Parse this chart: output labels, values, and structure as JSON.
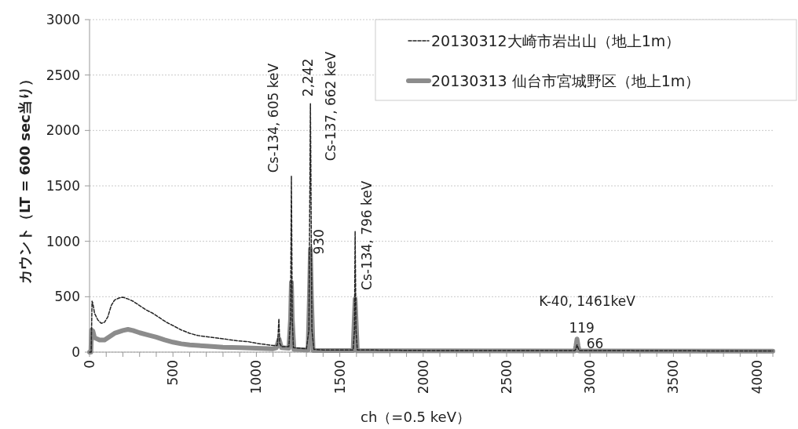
{
  "chart_data": {
    "type": "line",
    "xlabel": "ch（=0.5 keV）",
    "ylabel": "カウント（LT = 600 sec当り）",
    "xlim": [
      0,
      4096
    ],
    "ylim": [
      0,
      3000
    ],
    "xticks": [
      0,
      {
        "value": 100,
        "label": null
      },
      {
        "value": 200,
        "label": null
      },
      {
        "value": 300,
        "label": null
      },
      {
        "value": 400,
        "label": null
      },
      500,
      {
        "value": 600,
        "label": null
      },
      {
        "value": 700,
        "label": null
      },
      {
        "value": 800,
        "label": null
      },
      {
        "value": 900,
        "label": null
      },
      1000,
      {
        "value": 1100,
        "label": null
      },
      {
        "value": 1200,
        "label": null
      },
      {
        "value": 1300,
        "label": null
      },
      {
        "value": 1400,
        "label": null
      },
      1500,
      {
        "value": 1600,
        "label": null
      },
      {
        "value": 1700,
        "label": null
      },
      {
        "value": 1800,
        "label": null
      },
      {
        "value": 1900,
        "label": null
      },
      2000,
      {
        "value": 2100,
        "label": null
      },
      {
        "value": 2200,
        "label": null
      },
      {
        "value": 2300,
        "label": null
      },
      {
        "value": 2400,
        "label": null
      },
      2500,
      {
        "value": 2600,
        "label": null
      },
      {
        "value": 2700,
        "label": null
      },
      {
        "value": 2800,
        "label": null
      },
      {
        "value": 2900,
        "label": null
      },
      3000,
      {
        "value": 3100,
        "label": null
      },
      {
        "value": 3200,
        "label": null
      },
      {
        "value": 3300,
        "label": null
      },
      {
        "value": 3400,
        "label": null
      },
      3500,
      {
        "value": 3600,
        "label": null
      },
      {
        "value": 3700,
        "label": null
      },
      {
        "value": 3800,
        "label": null
      },
      {
        "value": 3900,
        "label": null
      },
      4000
    ],
    "yticks": [
      0,
      500,
      1000,
      1500,
      2000,
      2500,
      3000
    ],
    "grid": "y",
    "legend": "top right",
    "series": [
      {
        "name": "20130312大崎市岩出山（地上1m）",
        "color": "#222222",
        "line_style": "dashed",
        "x": [
          0,
          10,
          15,
          20,
          30,
          50,
          70,
          90,
          110,
          130,
          150,
          180,
          200,
          230,
          260,
          300,
          340,
          380,
          420,
          460,
          500,
          550,
          600,
          650,
          700,
          750,
          800,
          850,
          900,
          950,
          1000,
          1050,
          1100,
          1125,
          1130,
          1135,
          1140,
          1150,
          1195,
          1205,
          1210,
          1215,
          1222,
          1300,
          1315,
          1324,
          1333,
          1345,
          1400,
          1580,
          1588,
          1592,
          1597,
          1605,
          2000,
          2500,
          2910,
          2918,
          2922,
          2928,
          2935,
          3500,
          4096
        ],
        "values": [
          0,
          0,
          460,
          440,
          350,
          290,
          260,
          270,
          320,
          420,
          470,
          490,
          495,
          480,
          460,
          420,
          380,
          350,
          310,
          270,
          240,
          200,
          170,
          150,
          140,
          130,
          120,
          110,
          100,
          95,
          80,
          70,
          60,
          60,
          150,
          300,
          80,
          50,
          50,
          300,
          1590,
          300,
          40,
          30,
          200,
          2242,
          200,
          25,
          20,
          20,
          200,
          1090,
          200,
          20,
          15,
          15,
          15,
          40,
          66,
          40,
          15,
          12,
          10
        ]
      },
      {
        "name": "20130313 仙台市宮城野区（地上1m）",
        "color": "#8c8c8c",
        "line_style": "solid",
        "x": [
          0,
          8,
          12,
          20,
          30,
          60,
          90,
          120,
          150,
          200,
          230,
          260,
          300,
          350,
          400,
          450,
          500,
          550,
          600,
          700,
          800,
          900,
          1000,
          1100,
          1120,
          1136,
          1150,
          1195,
          1205,
          1210,
          1215,
          1225,
          1310,
          1318,
          1324,
          1330,
          1340,
          1580,
          1587,
          1592,
          1597,
          1605,
          2910,
          2916,
          2922,
          2928,
          2935,
          4096
        ],
        "values": [
          0,
          0,
          200,
          190,
          130,
          110,
          110,
          140,
          170,
          195,
          205,
          195,
          175,
          155,
          135,
          110,
          90,
          75,
          65,
          55,
          45,
          40,
          35,
          30,
          40,
          120,
          40,
          35,
          300,
          630,
          300,
          25,
          20,
          500,
          930,
          500,
          15,
          15,
          300,
          480,
          300,
          12,
          10,
          60,
          119,
          60,
          10,
          8
        ]
      }
    ],
    "annotations": [
      {
        "text": "Cs-134, 605  keV",
        "x": 1210,
        "y": 1590
      },
      {
        "text": "2,242",
        "x": 1324,
        "y": 2242
      },
      {
        "text": "Cs-137, 662 keV",
        "x": 1324,
        "y": 2242
      },
      {
        "text": "930",
        "x": 1324,
        "y": 930
      },
      {
        "text": "Cs-134, 796 keV",
        "x": 1592,
        "y": 1090
      },
      {
        "text": "K-40, 1461keV",
        "x": 2922,
        "y": 119
      },
      {
        "text": "119",
        "x": 2922,
        "y": 119
      },
      {
        "text": "66",
        "x": 2922,
        "y": 66
      }
    ]
  }
}
